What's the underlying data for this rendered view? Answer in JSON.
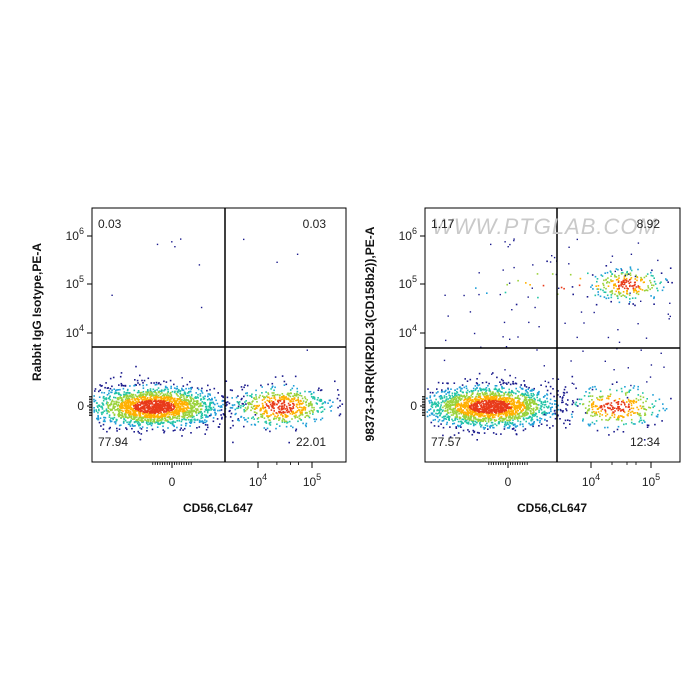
{
  "watermark": "WWW.PTGLAB.COM",
  "colors": {
    "density_low": "#1a1a8c",
    "density_mid": "#1f9fd8",
    "density_high": "#ffb000",
    "density_peak": "#e83a1a",
    "gate": "#000000"
  },
  "chart_data": [
    {
      "type": "scatter",
      "title": "",
      "xlabel": "CD56,CL647",
      "ylabel": "Rabbit IgG Isotype,PE-A",
      "x_scale": "biexponential",
      "y_scale": "biexponential",
      "x_ticks": [
        {
          "label": "0",
          "sup": ""
        },
        {
          "label": "10",
          "sup": "4"
        },
        {
          "label": "10",
          "sup": "5"
        }
      ],
      "y_ticks": [
        {
          "label": "0",
          "sup": ""
        },
        {
          "label": "10",
          "sup": "4"
        },
        {
          "label": "10",
          "sup": "5"
        },
        {
          "label": "10",
          "sup": "6"
        }
      ],
      "quadrant_percentages": {
        "upper_left": "0.03",
        "upper_right": "0.03",
        "lower_left": "77.94",
        "lower_right": "22.01"
      },
      "populations": [
        {
          "name": "CD56- PE-",
          "center_x_decades": -0.4,
          "center_y_decades": 0.0,
          "share": 0.78
        },
        {
          "name": "CD56+ PE-",
          "center_x_decades": 4.4,
          "center_y_decades": 0.0,
          "share": 0.22
        }
      ]
    },
    {
      "type": "scatter",
      "title": "",
      "xlabel": "CD56,CL647",
      "ylabel": "98373-3-RR(KIR2DL3(CD158b2)),PE-A",
      "x_scale": "biexponential",
      "y_scale": "biexponential",
      "x_ticks": [
        {
          "label": "0",
          "sup": ""
        },
        {
          "label": "10",
          "sup": "4"
        },
        {
          "label": "10",
          "sup": "5"
        }
      ],
      "y_ticks": [
        {
          "label": "0",
          "sup": ""
        },
        {
          "label": "10",
          "sup": "4"
        },
        {
          "label": "10",
          "sup": "5"
        },
        {
          "label": "10",
          "sup": "6"
        }
      ],
      "quadrant_percentages": {
        "upper_left": "1.17",
        "upper_right": "8.92",
        "lower_left": "77.57",
        "lower_right": "12.34"
      },
      "populations": [
        {
          "name": "CD56- PE-",
          "center_x_decades": -0.4,
          "center_y_decades": 0.0,
          "share": 0.78
        },
        {
          "name": "CD56+ PE-",
          "center_x_decades": 4.4,
          "center_y_decades": 0.0,
          "share": 0.12
        },
        {
          "name": "CD56+ PE+",
          "center_x_decades": 4.6,
          "center_y_decades": 5.0,
          "share": 0.09
        },
        {
          "name": "CD56- PE+",
          "center_x_decades": 2.5,
          "center_y_decades": 5.0,
          "share": 0.01
        }
      ]
    }
  ]
}
